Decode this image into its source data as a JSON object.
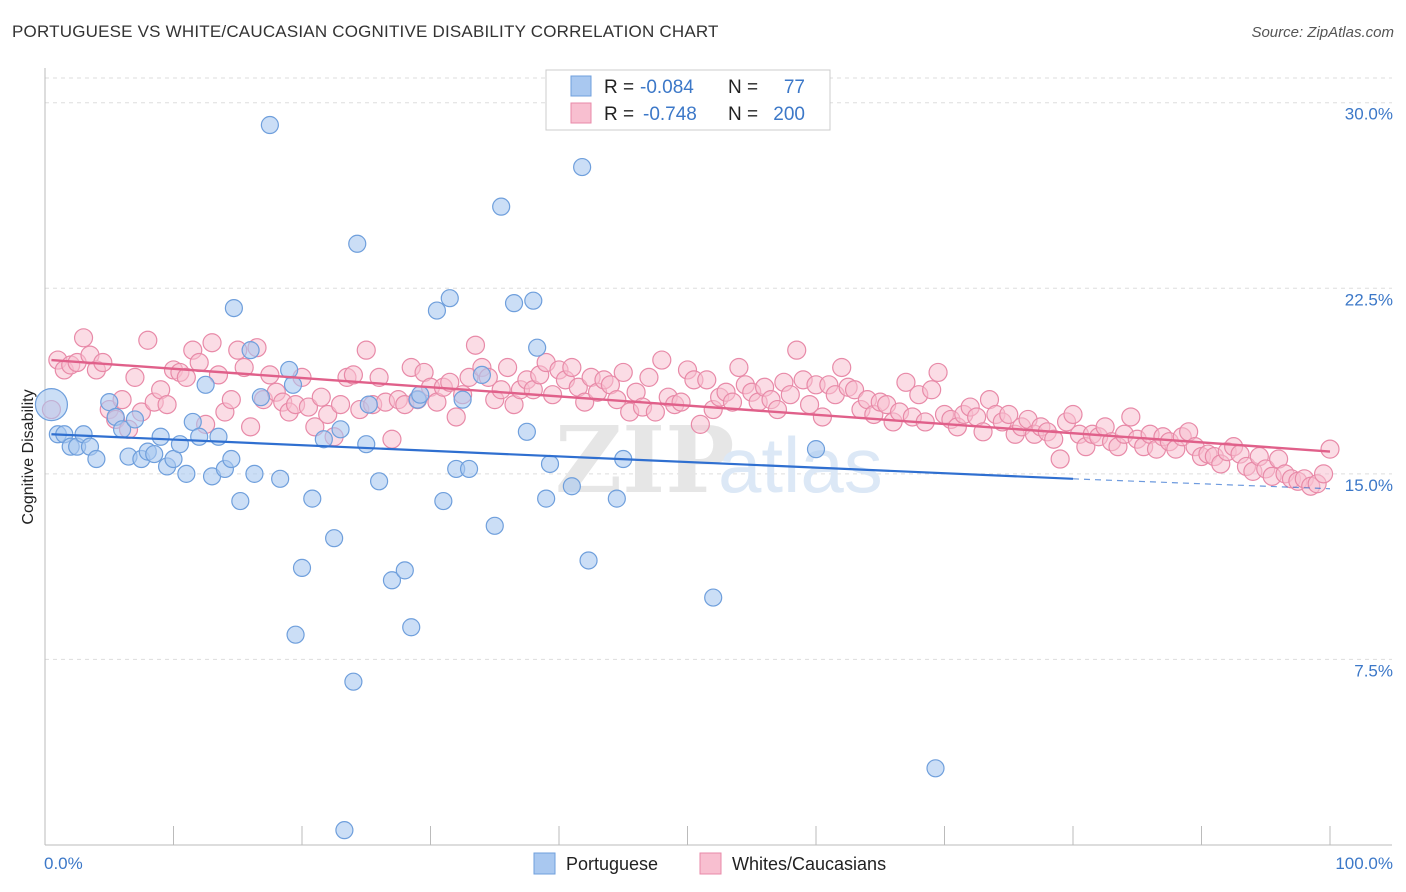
{
  "title": "PORTUGUESE VS WHITE/CAUCASIAN COGNITIVE DISABILITY CORRELATION CHART",
  "source": "Source: ZipAtlas.com",
  "watermark": {
    "zip": "ZIP",
    "atlas": "atlas"
  },
  "legend": {
    "r_label": "R =",
    "n_label": "N =",
    "rows": [
      {
        "name": "Portuguese",
        "r": "-0.084",
        "n": "77",
        "color": "#a9c8f0",
        "stroke": "#6f9fdc"
      },
      {
        "name": "Whites/Caucasians",
        "r": "-0.748",
        "n": "200",
        "color": "#f8bfd0",
        "stroke": "#e88aa8"
      }
    ]
  },
  "colors": {
    "blue_fill": "#a9c8f0",
    "blue_stroke": "#6f9fdc",
    "blue_line": "#2f6fd0",
    "pink_fill": "#f8bfd0",
    "pink_stroke": "#e88aa8",
    "pink_line": "#e0608a",
    "tick": "#3c78c8",
    "grid": "#dddddd"
  },
  "chart_data": {
    "type": "scatter",
    "title": "PORTUGUESE VS WHITE/CAUCASIAN COGNITIVE DISABILITY CORRELATION CHART",
    "xlabel": "",
    "ylabel": "Cognitive Disability",
    "xlim": [
      0,
      100
    ],
    "ylim": [
      0,
      31
    ],
    "x_tick_labels": [
      "0.0%",
      "100.0%"
    ],
    "y_ticks": [
      {
        "value": 7.5,
        "label": "7.5%"
      },
      {
        "value": 15.0,
        "label": "15.0%"
      },
      {
        "value": 22.5,
        "label": "22.5%"
      },
      {
        "value": 30.0,
        "label": "30.0%"
      }
    ],
    "grid": true,
    "legend_position": "top-center",
    "series": [
      {
        "name": "Portuguese",
        "trend": {
          "x0": 0.5,
          "y0": 16.6,
          "x1": 80,
          "y1": 14.8,
          "dash_to": 100,
          "dash_y": 14.4
        },
        "points": [
          [
            0.5,
            17.8
          ],
          [
            1,
            16.6
          ],
          [
            1.5,
            16.6
          ],
          [
            2,
            16.1
          ],
          [
            2.5,
            16.1
          ],
          [
            3,
            16.6
          ],
          [
            3.5,
            16.1
          ],
          [
            4,
            15.6
          ],
          [
            5,
            17.9
          ],
          [
            5.5,
            17.3
          ],
          [
            6,
            16.8
          ],
          [
            6.5,
            15.7
          ],
          [
            7,
            17.2
          ],
          [
            7.5,
            15.6
          ],
          [
            8,
            15.9
          ],
          [
            8.5,
            15.8
          ],
          [
            9,
            16.5
          ],
          [
            9.5,
            15.3
          ],
          [
            10,
            15.6
          ],
          [
            10.5,
            16.2
          ],
          [
            11,
            15
          ],
          [
            11.5,
            17.1
          ],
          [
            12,
            16.5
          ],
          [
            12.5,
            18.6
          ],
          [
            13,
            14.9
          ],
          [
            13.5,
            16.5
          ],
          [
            14,
            15.2
          ],
          [
            14.5,
            15.6
          ],
          [
            14.7,
            21.7
          ],
          [
            15.2,
            13.9
          ],
          [
            16,
            20
          ],
          [
            16.3,
            15
          ],
          [
            16.8,
            18.1
          ],
          [
            17.5,
            29.1
          ],
          [
            18.3,
            14.8
          ],
          [
            19,
            19.2
          ],
          [
            19.3,
            18.6
          ],
          [
            19.5,
            8.5
          ],
          [
            20,
            11.2
          ],
          [
            20.8,
            14
          ],
          [
            21.7,
            16.4
          ],
          [
            22.5,
            12.4
          ],
          [
            23,
            16.8
          ],
          [
            23.3,
            0.6
          ],
          [
            24,
            6.6
          ],
          [
            24.3,
            24.3
          ],
          [
            25,
            16.2
          ],
          [
            25.2,
            17.8
          ],
          [
            26,
            14.7
          ],
          [
            27,
            10.7
          ],
          [
            28,
            11.1
          ],
          [
            28.5,
            8.8
          ],
          [
            29,
            18
          ],
          [
            29.2,
            18.2
          ],
          [
            30.5,
            21.6
          ],
          [
            31,
            13.9
          ],
          [
            31.5,
            22.1
          ],
          [
            32,
            15.2
          ],
          [
            32.5,
            18
          ],
          [
            33,
            15.2
          ],
          [
            34,
            19
          ],
          [
            35,
            12.9
          ],
          [
            35.5,
            25.8
          ],
          [
            36.5,
            21.9
          ],
          [
            37.5,
            16.7
          ],
          [
            38,
            22
          ],
          [
            38.3,
            20.1
          ],
          [
            39,
            14
          ],
          [
            39.3,
            15.4
          ],
          [
            41,
            14.5
          ],
          [
            41.8,
            27.4
          ],
          [
            42.3,
            11.5
          ],
          [
            44.5,
            14
          ],
          [
            45,
            15.6
          ],
          [
            60,
            16
          ],
          [
            69.3,
            3.1
          ],
          [
            52,
            10
          ]
        ]
      },
      {
        "name": "Whites/Caucasians",
        "trend": {
          "x0": 0.5,
          "y0": 19.6,
          "x1": 100,
          "y1": 15.9
        },
        "points": [
          [
            0.5,
            17.6
          ],
          [
            1,
            19.6
          ],
          [
            1.5,
            19.2
          ],
          [
            2,
            19.4
          ],
          [
            2.5,
            19.5
          ],
          [
            3,
            20.5
          ],
          [
            3.5,
            19.8
          ],
          [
            4,
            19.2
          ],
          [
            4.5,
            19.5
          ],
          [
            5,
            17.6
          ],
          [
            5.5,
            17.2
          ],
          [
            6,
            18
          ],
          [
            6.5,
            16.8
          ],
          [
            7,
            18.9
          ],
          [
            7.5,
            17.5
          ],
          [
            8,
            20.4
          ],
          [
            8.5,
            17.9
          ],
          [
            9,
            18.4
          ],
          [
            9.5,
            17.8
          ],
          [
            10,
            19.2
          ],
          [
            10.5,
            19.1
          ],
          [
            11,
            18.9
          ],
          [
            11.5,
            20
          ],
          [
            12,
            19.5
          ],
          [
            12.5,
            17
          ],
          [
            13,
            20.3
          ],
          [
            13.5,
            19
          ],
          [
            14,
            17.5
          ],
          [
            14.5,
            18
          ],
          [
            15,
            20
          ],
          [
            15.5,
            19.3
          ],
          [
            16,
            16.9
          ],
          [
            16.5,
            20.1
          ],
          [
            17,
            18
          ],
          [
            17.5,
            19
          ],
          [
            18,
            18.3
          ],
          [
            18.5,
            17.9
          ],
          [
            19,
            17.5
          ],
          [
            19.5,
            17.8
          ],
          [
            20,
            18.9
          ],
          [
            20.5,
            17.7
          ],
          [
            21,
            16.9
          ],
          [
            21.5,
            18.1
          ],
          [
            22,
            17.4
          ],
          [
            22.5,
            16.5
          ],
          [
            23,
            17.8
          ],
          [
            23.5,
            18.9
          ],
          [
            24,
            19
          ],
          [
            24.5,
            17.6
          ],
          [
            25,
            20
          ],
          [
            25.5,
            17.8
          ],
          [
            26,
            18.9
          ],
          [
            26.5,
            17.9
          ],
          [
            27,
            16.4
          ],
          [
            27.5,
            18
          ],
          [
            28,
            17.8
          ],
          [
            28.5,
            19.3
          ],
          [
            29,
            18
          ],
          [
            29.5,
            19.1
          ],
          [
            30,
            18.5
          ],
          [
            30.5,
            17.9
          ],
          [
            31,
            18.5
          ],
          [
            31.5,
            18.7
          ],
          [
            32,
            17.3
          ],
          [
            32.5,
            18.2
          ],
          [
            33,
            18.9
          ],
          [
            33.5,
            20.2
          ],
          [
            34,
            19.3
          ],
          [
            34.5,
            18.9
          ],
          [
            35,
            18
          ],
          [
            35.5,
            18.4
          ],
          [
            36,
            19.3
          ],
          [
            36.5,
            17.8
          ],
          [
            37,
            18.4
          ],
          [
            37.5,
            18.8
          ],
          [
            38,
            18.4
          ],
          [
            38.5,
            19
          ],
          [
            39,
            19.5
          ],
          [
            39.5,
            18.2
          ],
          [
            40,
            19.2
          ],
          [
            40.5,
            18.8
          ],
          [
            41,
            19.3
          ],
          [
            41.5,
            18.5
          ],
          [
            42,
            17.9
          ],
          [
            42.5,
            18.9
          ],
          [
            43,
            18.3
          ],
          [
            43.5,
            18.8
          ],
          [
            44,
            18.6
          ],
          [
            44.5,
            18
          ],
          [
            45,
            19.1
          ],
          [
            45.5,
            17.5
          ],
          [
            46,
            18.3
          ],
          [
            46.5,
            17.7
          ],
          [
            47,
            18.9
          ],
          [
            47.5,
            17.5
          ],
          [
            48,
            19.6
          ],
          [
            48.5,
            18.1
          ],
          [
            49,
            17.8
          ],
          [
            49.5,
            17.9
          ],
          [
            50,
            19.2
          ],
          [
            50.5,
            18.8
          ],
          [
            51,
            17
          ],
          [
            51.5,
            18.8
          ],
          [
            52,
            17.6
          ],
          [
            52.5,
            18.1
          ],
          [
            53,
            18.3
          ],
          [
            53.5,
            17.9
          ],
          [
            54,
            19.3
          ],
          [
            54.5,
            18.6
          ],
          [
            55,
            18.3
          ],
          [
            55.5,
            17.9
          ],
          [
            56,
            18.5
          ],
          [
            56.5,
            18
          ],
          [
            57,
            17.6
          ],
          [
            57.5,
            18.7
          ],
          [
            58,
            18.2
          ],
          [
            58.5,
            20
          ],
          [
            59,
            18.8
          ],
          [
            59.5,
            17.8
          ],
          [
            60,
            18.6
          ],
          [
            60.5,
            17.3
          ],
          [
            61,
            18.6
          ],
          [
            61.5,
            18.2
          ],
          [
            62,
            19.3
          ],
          [
            62.5,
            18.5
          ],
          [
            63,
            18.4
          ],
          [
            63.5,
            17.6
          ],
          [
            64,
            18
          ],
          [
            64.5,
            17.4
          ],
          [
            65,
            17.9
          ],
          [
            65.5,
            17.8
          ],
          [
            66,
            17.1
          ],
          [
            66.5,
            17.5
          ],
          [
            67,
            18.7
          ],
          [
            67.5,
            17.3
          ],
          [
            68,
            18.2
          ],
          [
            68.5,
            17.1
          ],
          [
            69,
            18.4
          ],
          [
            69.5,
            19.1
          ],
          [
            70,
            17.4
          ],
          [
            70.5,
            17.2
          ],
          [
            71,
            16.9
          ],
          [
            71.5,
            17.4
          ],
          [
            72,
            17.7
          ],
          [
            72.5,
            17.3
          ],
          [
            73,
            16.7
          ],
          [
            73.5,
            18
          ],
          [
            74,
            17.4
          ],
          [
            74.5,
            17.1
          ],
          [
            75,
            17.4
          ],
          [
            75.5,
            16.6
          ],
          [
            76,
            16.9
          ],
          [
            76.5,
            17.2
          ],
          [
            77,
            16.6
          ],
          [
            77.5,
            16.9
          ],
          [
            78,
            16.7
          ],
          [
            78.5,
            16.4
          ],
          [
            79,
            15.6
          ],
          [
            79.5,
            17.1
          ],
          [
            80,
            17.4
          ],
          [
            80.5,
            16.6
          ],
          [
            81,
            16.1
          ],
          [
            81.5,
            16.6
          ],
          [
            82,
            16.5
          ],
          [
            82.5,
            16.9
          ],
          [
            83,
            16.3
          ],
          [
            83.5,
            16.1
          ],
          [
            84,
            16.6
          ],
          [
            84.5,
            17.3
          ],
          [
            85,
            16.4
          ],
          [
            85.5,
            16.1
          ],
          [
            86,
            16.6
          ],
          [
            86.5,
            16
          ],
          [
            87,
            16.5
          ],
          [
            87.5,
            16.3
          ],
          [
            88,
            16
          ],
          [
            88.5,
            16.5
          ],
          [
            89,
            16.7
          ],
          [
            89.5,
            16.1
          ],
          [
            90,
            15.7
          ],
          [
            90.5,
            15.8
          ],
          [
            91,
            15.7
          ],
          [
            91.5,
            15.4
          ],
          [
            92,
            15.9
          ],
          [
            92.5,
            16.1
          ],
          [
            93,
            15.8
          ],
          [
            93.5,
            15.3
          ],
          [
            94,
            15.1
          ],
          [
            94.5,
            15.7
          ],
          [
            95,
            15.2
          ],
          [
            95.5,
            14.9
          ],
          [
            96,
            15.6
          ],
          [
            96.5,
            15
          ],
          [
            97,
            14.8
          ],
          [
            97.5,
            14.7
          ],
          [
            98,
            14.8
          ],
          [
            98.5,
            14.5
          ],
          [
            99,
            14.6
          ],
          [
            99.5,
            15
          ],
          [
            100,
            16
          ]
        ]
      }
    ]
  }
}
